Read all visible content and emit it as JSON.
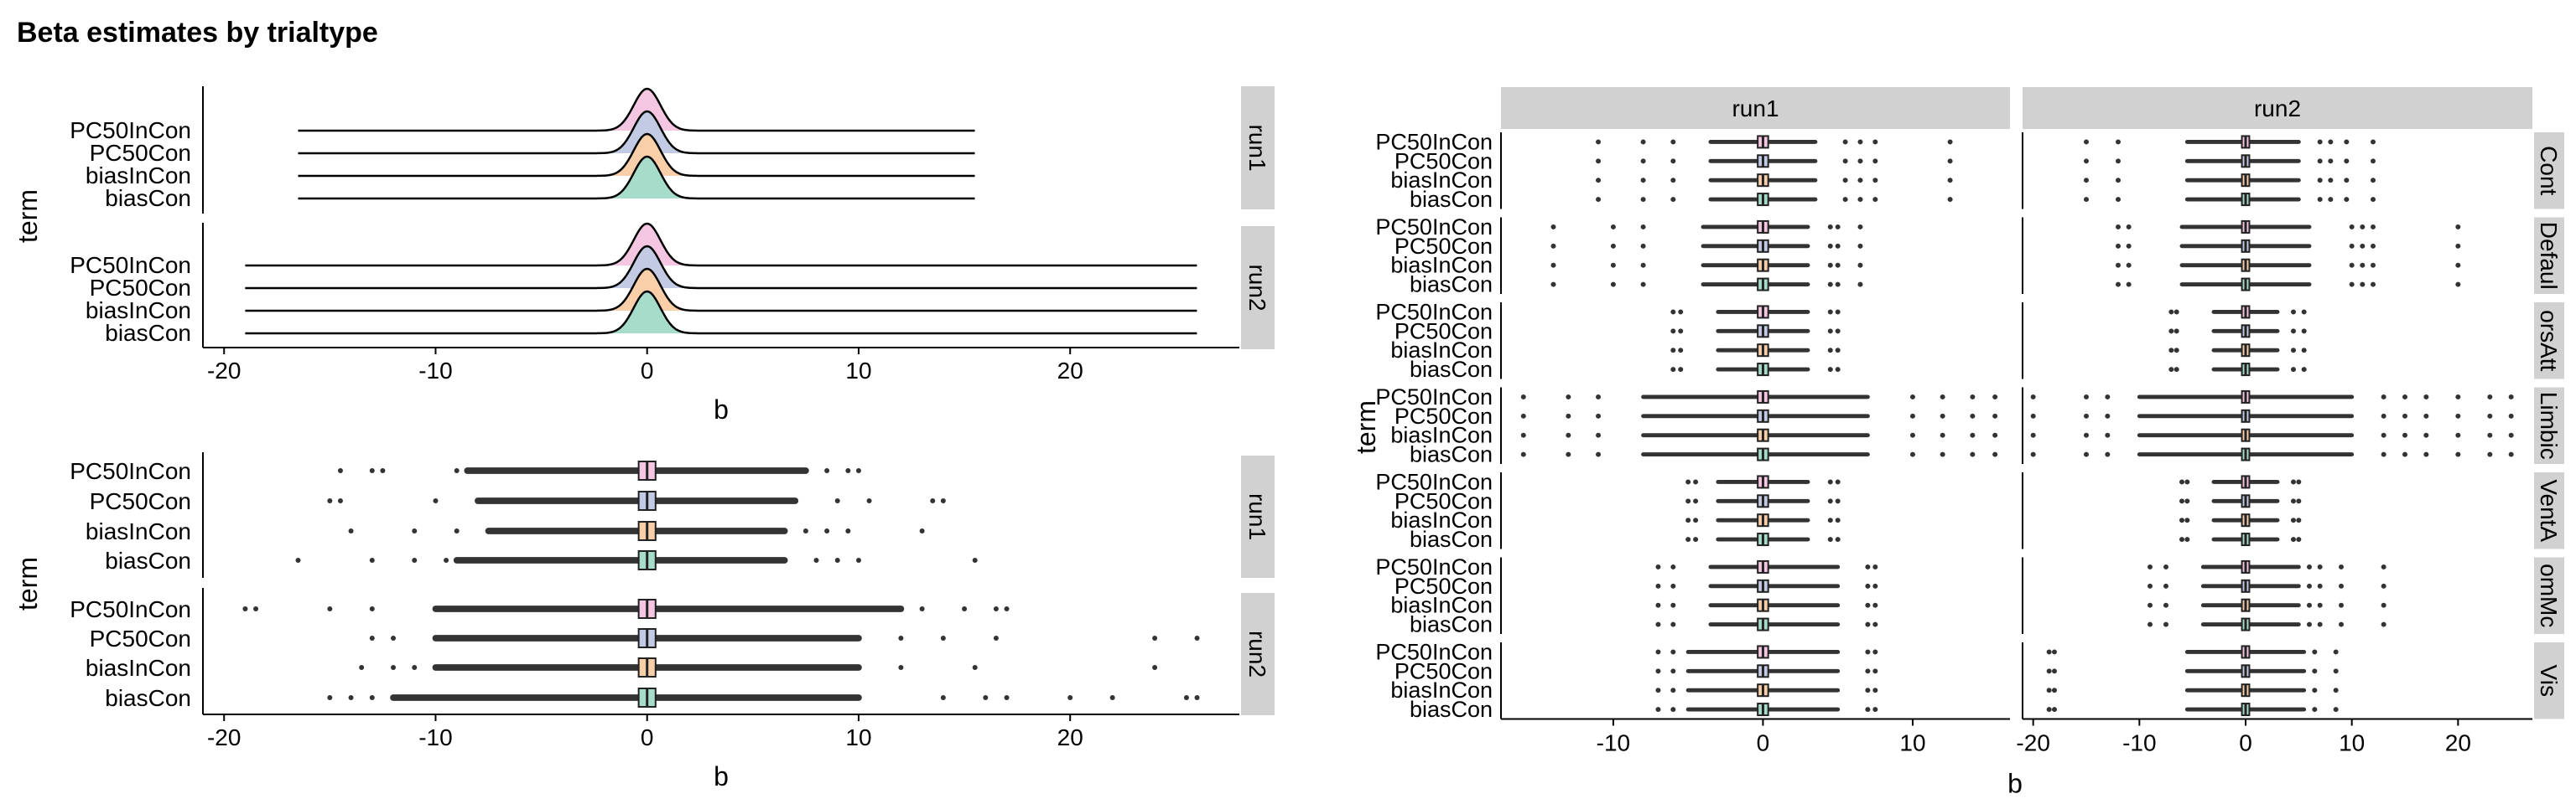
{
  "title": "Beta estimates by trialtype",
  "colors": {
    "biasCon": "#a6dcc9",
    "biasInCon": "#f9cfaa",
    "PC50Con": "#c3cbe4",
    "PC50InCon": "#f5c6e2",
    "strip": "#d1d1d1",
    "points": "#333333"
  },
  "chart_data": [
    {
      "type": "ridgeline",
      "xlabel": "b",
      "ylabel": "term",
      "terms": [
        "biasCon",
        "biasInCon",
        "PC50Con",
        "PC50InCon"
      ],
      "xlim": [
        -21,
        28
      ],
      "xticks": [
        -20,
        -10,
        0,
        10,
        20
      ],
      "facets": [
        {
          "label": "run1",
          "range": [
            -16.5,
            15.5
          ],
          "peak_at": 0
        },
        {
          "label": "run2",
          "range": [
            -19,
            26
          ],
          "peak_at": 0
        }
      ]
    },
    {
      "type": "boxplot",
      "xlabel": "b",
      "ylabel": "term",
      "terms": [
        "biasCon",
        "biasInCon",
        "PC50Con",
        "PC50InCon"
      ],
      "xlim": [
        -21,
        28
      ],
      "xticks": [
        -20,
        -10,
        0,
        10,
        20
      ],
      "facets": [
        {
          "label": "run1",
          "series": [
            {
              "term": "biasCon",
              "median": 0,
              "q1": -0.4,
              "q3": 0.4,
              "whisker": [
                -7.5,
                4.5
              ],
              "dense": [
                -9,
                6.5
              ],
              "outliers": [
                -16.5,
                -13,
                -11,
                -9.5,
                8,
                9,
                10,
                15.5
              ]
            },
            {
              "term": "biasInCon",
              "median": 0,
              "q1": -0.4,
              "q3": 0.4,
              "whisker": [
                -6,
                4.5
              ],
              "dense": [
                -7.5,
                6.5
              ],
              "outliers": [
                -14,
                -11,
                -9,
                7.5,
                8.5,
                9.5,
                13
              ]
            },
            {
              "term": "PC50Con",
              "median": 0,
              "q1": -0.4,
              "q3": 0.4,
              "whisker": [
                -6,
                4.5
              ],
              "dense": [
                -8,
                7
              ],
              "outliers": [
                -15,
                -14.5,
                -10,
                9,
                10.5,
                13.5,
                14
              ]
            },
            {
              "term": "PC50InCon",
              "median": 0,
              "q1": -0.4,
              "q3": 0.4,
              "whisker": [
                -6,
                4.5
              ],
              "dense": [
                -8.5,
                7.5
              ],
              "outliers": [
                -14.5,
                -13,
                -12.5,
                -9,
                8.5,
                9.5,
                10
              ]
            }
          ]
        },
        {
          "label": "run2",
          "series": [
            {
              "term": "biasCon",
              "median": 0,
              "q1": -0.4,
              "q3": 0.4,
              "whisker": [
                -7.5,
                4.5
              ],
              "dense": [
                -12,
                10
              ],
              "outliers": [
                -15,
                -14,
                -13,
                14,
                16,
                17,
                20,
                22,
                25.5,
                26
              ]
            },
            {
              "term": "biasInCon",
              "median": 0,
              "q1": -0.4,
              "q3": 0.4,
              "whisker": [
                -7.5,
                4.5
              ],
              "dense": [
                -10,
                10
              ],
              "outliers": [
                -13.5,
                -12,
                -11,
                12,
                15.5,
                24
              ]
            },
            {
              "term": "PC50Con",
              "median": 0,
              "q1": -0.4,
              "q3": 0.4,
              "whisker": [
                -7.5,
                4.5
              ],
              "dense": [
                -10,
                10
              ],
              "outliers": [
                -13,
                -12,
                12,
                14,
                16.5,
                24,
                26
              ]
            },
            {
              "term": "PC50InCon",
              "median": 0,
              "q1": -0.4,
              "q3": 0.4,
              "whisker": [
                -7.5,
                4.5
              ],
              "dense": [
                -10,
                12
              ],
              "outliers": [
                -19,
                -18.5,
                -15,
                -13,
                13,
                15,
                16.5,
                17
              ]
            }
          ]
        }
      ]
    },
    {
      "type": "boxplot",
      "xlabel": "b",
      "ylabel": "term",
      "terms": [
        "biasCon",
        "biasInCon",
        "PC50Con",
        "PC50InCon"
      ],
      "xlim": [
        -17.5,
        16.5
      ],
      "xlim_right": [
        -21,
        27
      ],
      "xticks": [
        -10,
        0,
        10
      ],
      "xticks_right": [
        -20,
        -10,
        0,
        10,
        20
      ],
      "columns": [
        "run1",
        "run2"
      ],
      "rows": [
        {
          "label": "Cont",
          "panels": [
            {
              "dense": [
                -3.5,
                3.5
              ],
              "outliers": [
                -6,
                -8,
                5.5,
                6.5,
                7.5,
                12.5,
                -11
              ]
            },
            {
              "dense": [
                -5.5,
                5
              ],
              "outliers": [
                -15,
                -12,
                7,
                8,
                9.5,
                12
              ]
            }
          ]
        },
        {
          "label": "Defaul",
          "panels": [
            {
              "dense": [
                -4,
                3
              ],
              "outliers": [
                -8,
                -10,
                -14,
                4.5,
                5,
                6.5
              ]
            },
            {
              "dense": [
                -6,
                6
              ],
              "outliers": [
                -12,
                -11,
                10,
                11,
                12,
                20
              ]
            }
          ]
        },
        {
          "label": "orsAtt",
          "panels": [
            {
              "dense": [
                -3,
                3
              ],
              "outliers": [
                -6,
                -5.5,
                4.5,
                5
              ]
            },
            {
              "dense": [
                -3,
                3
              ],
              "outliers": [
                -7,
                -6.5,
                4.5,
                5.5
              ]
            }
          ]
        },
        {
          "label": "Limbic",
          "panels": [
            {
              "dense": [
                -8,
                7
              ],
              "outliers": [
                -16,
                -13,
                -11,
                10,
                12,
                14,
                15.5
              ]
            },
            {
              "dense": [
                -10,
                10
              ],
              "outliers": [
                -20,
                -15,
                -13,
                13,
                15,
                17,
                20,
                23,
                25
              ]
            }
          ]
        },
        {
          "label": "VentA",
          "panels": [
            {
              "dense": [
                -3,
                3
              ],
              "outliers": [
                -5,
                -4.5,
                4.5,
                5
              ]
            },
            {
              "dense": [
                -3,
                3
              ],
              "outliers": [
                -6,
                -5.5,
                4.5,
                5
              ]
            }
          ]
        },
        {
          "label": "omMc",
          "panels": [
            {
              "dense": [
                -3.5,
                5
              ],
              "outliers": [
                -7,
                -6,
                7,
                7.5
              ]
            },
            {
              "dense": [
                -4,
                5
              ],
              "outliers": [
                -9,
                -7.5,
                6,
                7,
                9,
                13
              ]
            }
          ]
        },
        {
          "label": "Vis",
          "panels": [
            {
              "dense": [
                -5,
                5
              ],
              "outliers": [
                -7,
                -6,
                7,
                7.5
              ]
            },
            {
              "dense": [
                -5.5,
                5.5
              ],
              "outliers": [
                -18.5,
                -18,
                6.5,
                8.5
              ]
            }
          ]
        }
      ]
    }
  ]
}
